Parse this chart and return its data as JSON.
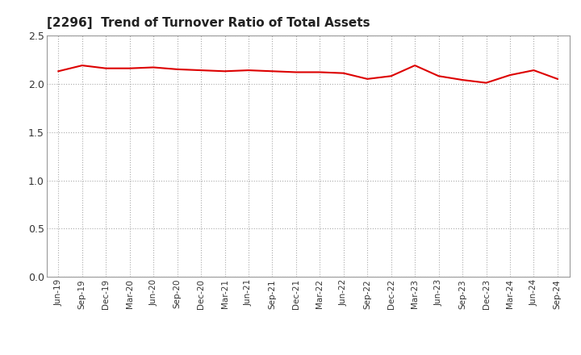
{
  "title": "[2296]  Trend of Turnover Ratio of Total Assets",
  "title_fontsize": 11,
  "title_color": "#222222",
  "line_color": "#dd0000",
  "line_width": 1.5,
  "background_color": "#ffffff",
  "grid_color": "#aaaaaa",
  "ylim": [
    0.0,
    2.5
  ],
  "yticks": [
    0.0,
    0.5,
    1.0,
    1.5,
    2.0,
    2.5
  ],
  "x_labels": [
    "Jun-19",
    "Sep-19",
    "Dec-19",
    "Mar-20",
    "Jun-20",
    "Sep-20",
    "Dec-20",
    "Mar-21",
    "Jun-21",
    "Sep-21",
    "Dec-21",
    "Mar-22",
    "Jun-22",
    "Sep-22",
    "Dec-22",
    "Mar-23",
    "Jun-23",
    "Sep-23",
    "Dec-23",
    "Mar-24",
    "Jun-24",
    "Sep-24"
  ],
  "values": [
    2.13,
    2.19,
    2.16,
    2.16,
    2.17,
    2.15,
    2.14,
    2.13,
    2.14,
    2.13,
    2.12,
    2.12,
    2.11,
    2.05,
    2.08,
    2.19,
    2.08,
    2.04,
    2.01,
    2.09,
    2.14,
    2.05
  ]
}
